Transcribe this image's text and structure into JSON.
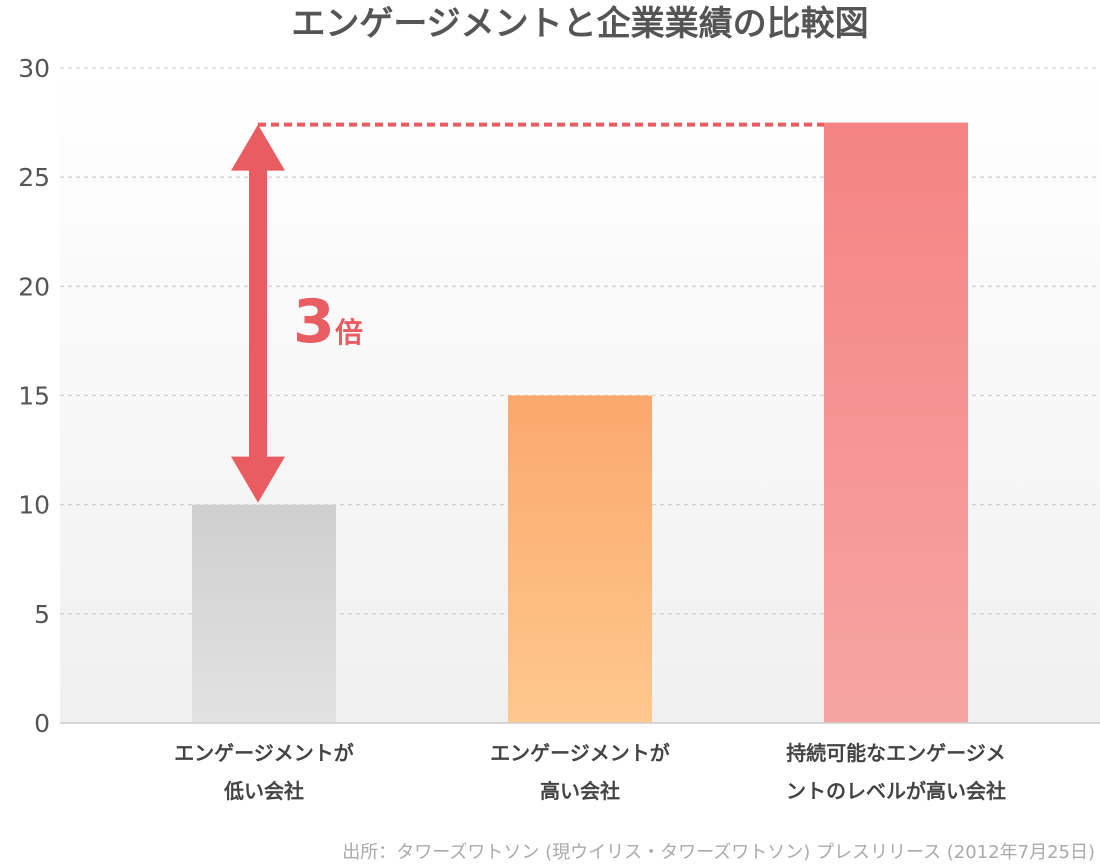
{
  "chart_data": {
    "type": "bar",
    "title": "エンゲージメントと企業業績の比較図",
    "categories": [
      [
        "エンゲージメントが",
        "低い会社"
      ],
      [
        "エンゲージメントが",
        "高い会社"
      ],
      [
        "持続可能なエンゲージメ",
        "ントのレベルが高い会社"
      ]
    ],
    "values": [
      10,
      15,
      27.5
    ],
    "ylim": [
      0,
      30
    ],
    "yticks": [
      0,
      5,
      10,
      15,
      20,
      25,
      30
    ],
    "grid": true,
    "bar_gradients": [
      [
        "#cfcfcf",
        "#e2e2e2"
      ],
      [
        "#fba86c",
        "#fec88e"
      ],
      [
        "#f58383",
        "#f6a5a3"
      ]
    ],
    "annotation": {
      "number": "3",
      "suffix": "倍",
      "color": "#e85c62"
    },
    "source": "出所：タワーズワトソン (現ウイリス・タワーズワトソン) プレスリリース (2012年7月25日)"
  }
}
